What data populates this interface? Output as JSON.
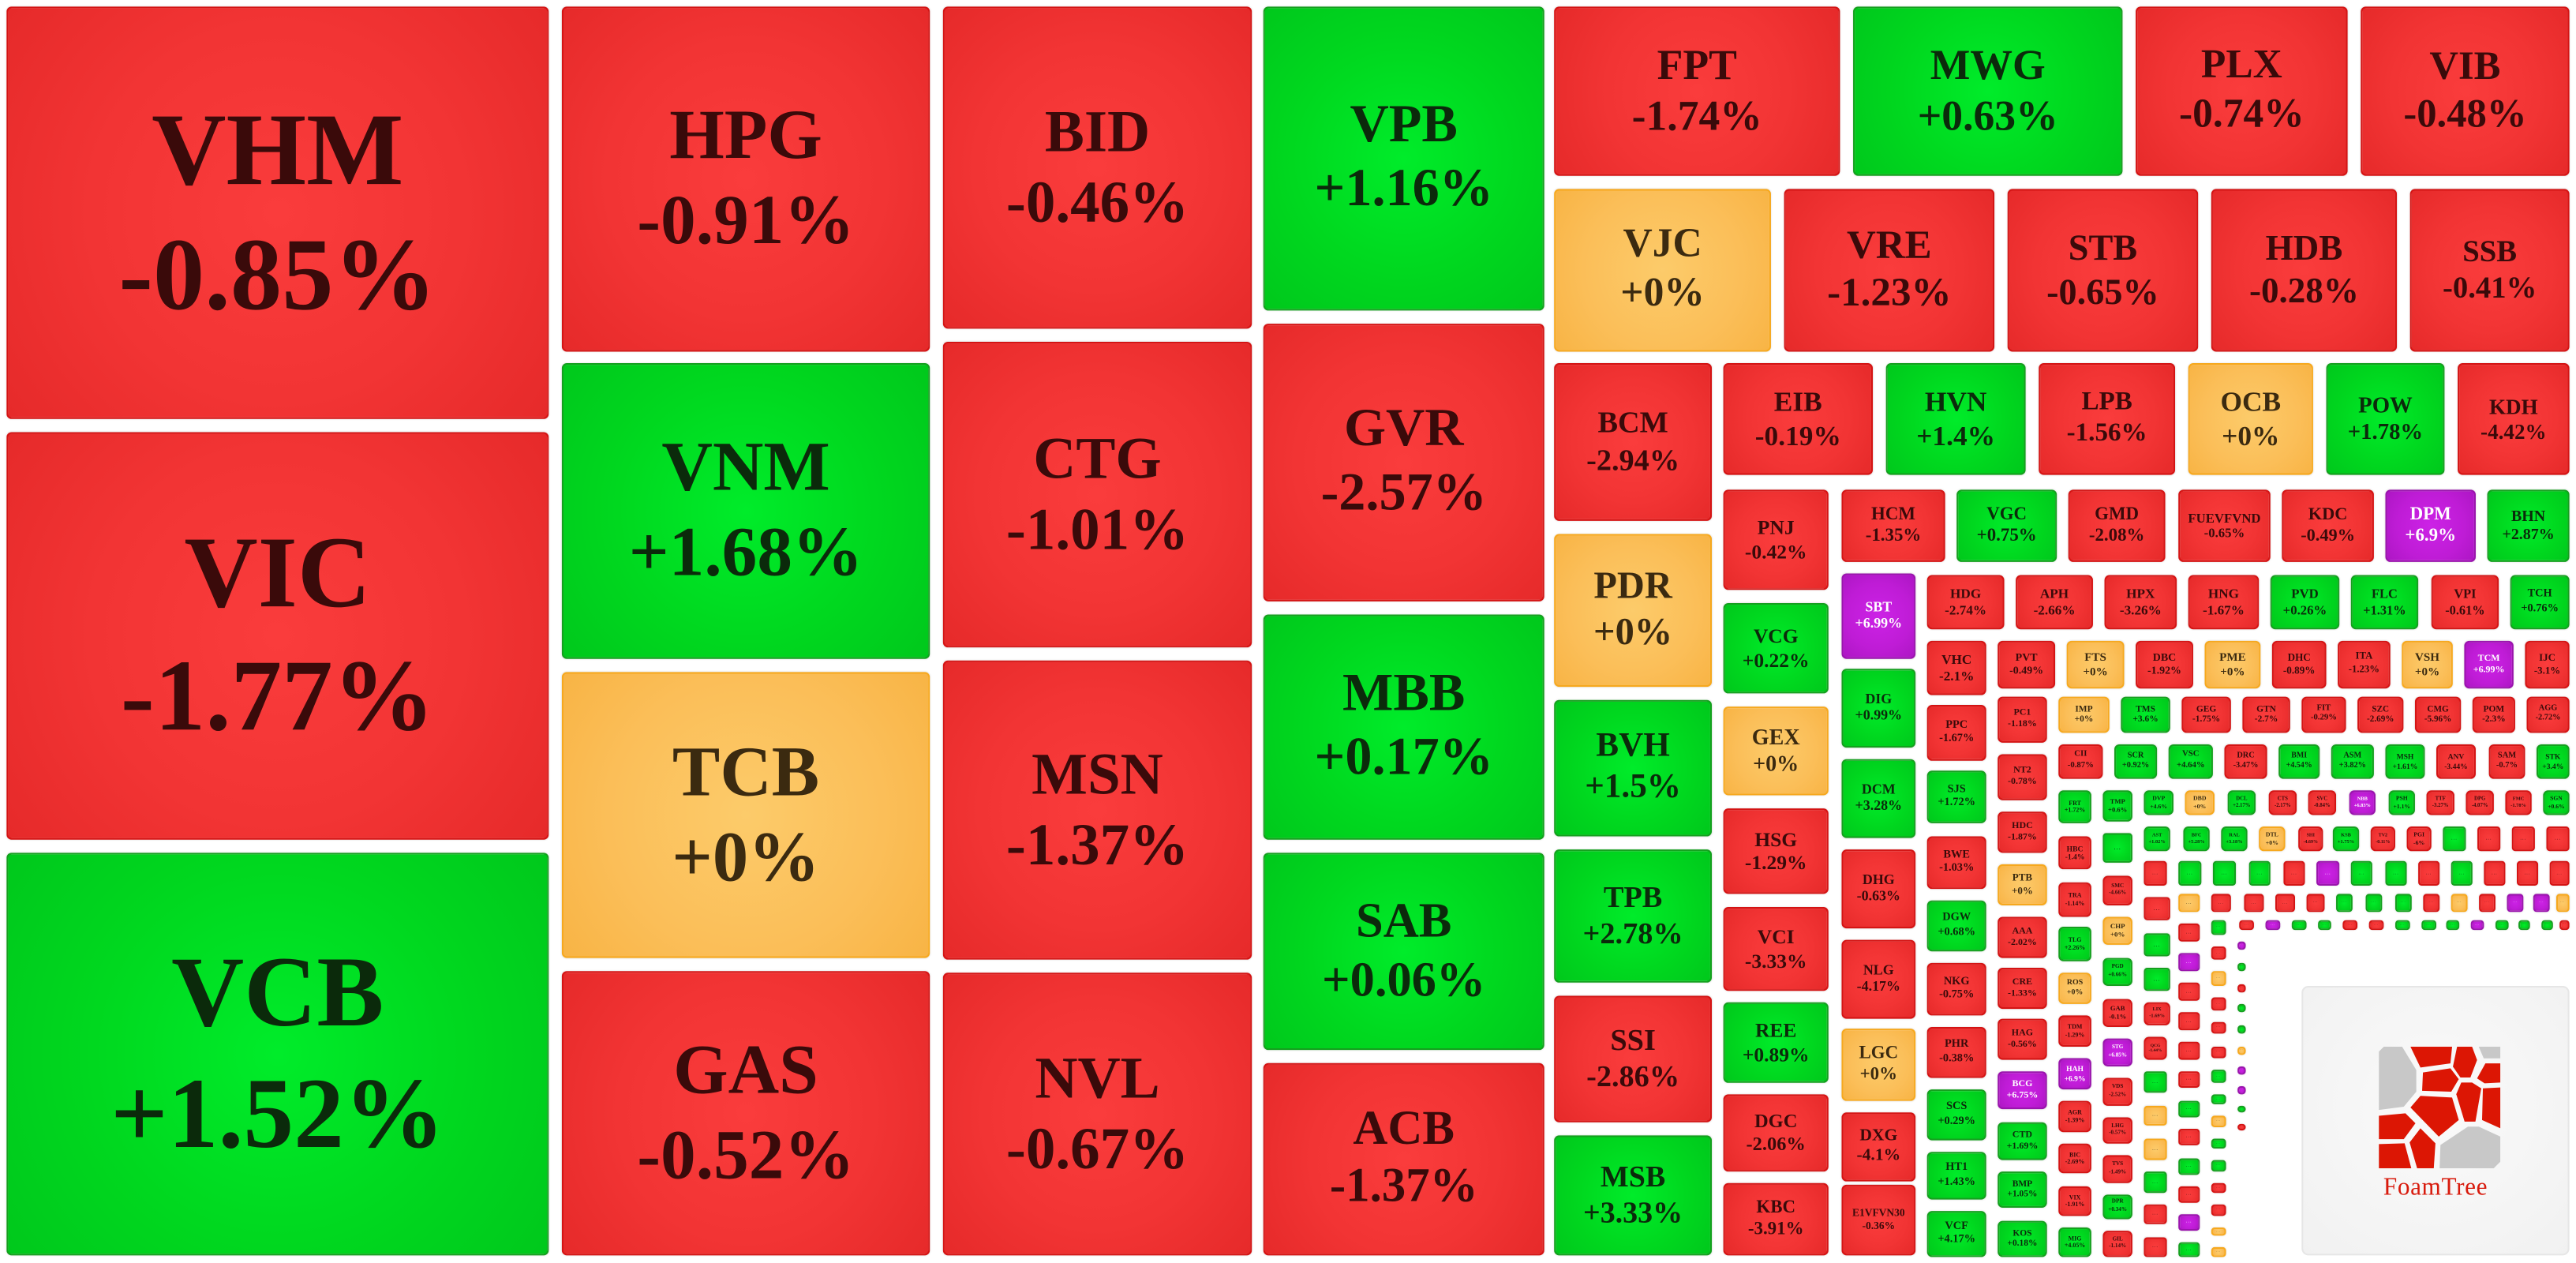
{
  "colors": {
    "down": "#f23434",
    "up": "#00d81f",
    "flat": "#fbbe58",
    "ceil": "#bf1cd6"
  },
  "tiles": [
    {
      "ticker": "VHM",
      "change": "-0.85%",
      "status": "down"
    },
    {
      "ticker": "VIC",
      "change": "-1.77%",
      "status": "down"
    },
    {
      "ticker": "VCB",
      "change": "+1.52%",
      "status": "up"
    },
    {
      "ticker": "HPG",
      "change": "-0.91%",
      "status": "down"
    },
    {
      "ticker": "VNM",
      "change": "+1.68%",
      "status": "up"
    },
    {
      "ticker": "TCB",
      "change": "+0%",
      "status": "flat"
    },
    {
      "ticker": "GAS",
      "change": "-0.52%",
      "status": "down"
    },
    {
      "ticker": "BID",
      "change": "-0.46%",
      "status": "down"
    },
    {
      "ticker": "CTG",
      "change": "-1.01%",
      "status": "down"
    },
    {
      "ticker": "MSN",
      "change": "-1.37%",
      "status": "down"
    },
    {
      "ticker": "NVL",
      "change": "-0.67%",
      "status": "down"
    },
    {
      "ticker": "VPB",
      "change": "+1.16%",
      "status": "up"
    },
    {
      "ticker": "GVR",
      "change": "-2.57%",
      "status": "down"
    },
    {
      "ticker": "MBB",
      "change": "+0.17%",
      "status": "up"
    },
    {
      "ticker": "SAB",
      "change": "+0.06%",
      "status": "up"
    },
    {
      "ticker": "ACB",
      "change": "-1.37%",
      "status": "down"
    },
    {
      "ticker": "FPT",
      "change": "-1.74%",
      "status": "down"
    },
    {
      "ticker": "MWG",
      "change": "+0.63%",
      "status": "up"
    },
    {
      "ticker": "PLX",
      "change": "-0.74%",
      "status": "down"
    },
    {
      "ticker": "VIB",
      "change": "-0.48%",
      "status": "down"
    },
    {
      "ticker": "VJC",
      "change": "+0%",
      "status": "flat"
    },
    {
      "ticker": "VRE",
      "change": "-1.23%",
      "status": "down"
    },
    {
      "ticker": "STB",
      "change": "-0.65%",
      "status": "down"
    },
    {
      "ticker": "HDB",
      "change": "-0.28%",
      "status": "down"
    },
    {
      "ticker": "SSB",
      "change": "-0.41%",
      "status": "down"
    },
    {
      "ticker": "BCM",
      "change": "-2.94%",
      "status": "down"
    },
    {
      "ticker": "PDR",
      "change": "+0%",
      "status": "flat"
    },
    {
      "ticker": "BVH",
      "change": "+1.5%",
      "status": "up"
    },
    {
      "ticker": "TPB",
      "change": "+2.78%",
      "status": "up"
    },
    {
      "ticker": "SSI",
      "change": "-2.86%",
      "status": "down"
    },
    {
      "ticker": "MSB",
      "change": "+3.33%",
      "status": "up"
    },
    {
      "ticker": "EIB",
      "change": "-0.19%",
      "status": "down"
    },
    {
      "ticker": "HVN",
      "change": "+1.4%",
      "status": "up"
    },
    {
      "ticker": "LPB",
      "change": "-1.56%",
      "status": "down"
    },
    {
      "ticker": "OCB",
      "change": "+0%",
      "status": "flat"
    },
    {
      "ticker": "POW",
      "change": "+1.78%",
      "status": "up"
    },
    {
      "ticker": "KDH",
      "change": "-4.42%",
      "status": "down"
    },
    {
      "ticker": "PNJ",
      "change": "-0.42%",
      "status": "down"
    },
    {
      "ticker": "VCG",
      "change": "+0.22%",
      "status": "up"
    },
    {
      "ticker": "GEX",
      "change": "+0%",
      "status": "flat"
    },
    {
      "ticker": "HSG",
      "change": "-1.29%",
      "status": "down"
    },
    {
      "ticker": "VCI",
      "change": "-3.33%",
      "status": "down"
    },
    {
      "ticker": "REE",
      "change": "+0.89%",
      "status": "up"
    },
    {
      "ticker": "DGC",
      "change": "-2.06%",
      "status": "down"
    },
    {
      "ticker": "KBC",
      "change": "-3.91%",
      "status": "down"
    },
    {
      "ticker": "HCM",
      "change": "-1.35%",
      "status": "down"
    },
    {
      "ticker": "VGC",
      "change": "+0.75%",
      "status": "up"
    },
    {
      "ticker": "GMD",
      "change": "-2.08%",
      "status": "down"
    },
    {
      "ticker": "FUEVFVND",
      "change": "-0.65%",
      "status": "down"
    },
    {
      "ticker": "KDC",
      "change": "-0.49%",
      "status": "down"
    },
    {
      "ticker": "DPM",
      "change": "+6.9%",
      "status": "ceil"
    },
    {
      "ticker": "BHN",
      "change": "+2.87%",
      "status": "up"
    },
    {
      "ticker": "SBT",
      "change": "+6.99%",
      "status": "ceil"
    },
    {
      "ticker": "DIG",
      "change": "+0.99%",
      "status": "up"
    },
    {
      "ticker": "DCM",
      "change": "+3.28%",
      "status": "up"
    },
    {
      "ticker": "DHG",
      "change": "-0.63%",
      "status": "down"
    },
    {
      "ticker": "NLG",
      "change": "-4.17%",
      "status": "down"
    },
    {
      "ticker": "LGC",
      "change": "+0%",
      "status": "flat"
    },
    {
      "ticker": "DXG",
      "change": "-4.1%",
      "status": "down"
    },
    {
      "ticker": "E1VFVN30",
      "change": "-0.36%",
      "status": "down"
    },
    {
      "ticker": "HDG",
      "change": "-2.74%",
      "status": "down"
    },
    {
      "ticker": "APH",
      "change": "-2.66%",
      "status": "down"
    },
    {
      "ticker": "HPX",
      "change": "-3.26%",
      "status": "down"
    },
    {
      "ticker": "HNG",
      "change": "-1.67%",
      "status": "down"
    },
    {
      "ticker": "PVD",
      "change": "+0.26%",
      "status": "up"
    },
    {
      "ticker": "FLC",
      "change": "+1.31%",
      "status": "up"
    },
    {
      "ticker": "VPI",
      "change": "-0.61%",
      "status": "down"
    },
    {
      "ticker": "TCH",
      "change": "+0.76%",
      "status": "up"
    },
    {
      "ticker": "VHC",
      "change": "-2.1%",
      "status": "down"
    },
    {
      "ticker": "PVT",
      "change": "-0.49%",
      "status": "down"
    },
    {
      "ticker": "FTS",
      "change": "+0%",
      "status": "flat"
    },
    {
      "ticker": "DBC",
      "change": "-1.92%",
      "status": "down"
    },
    {
      "ticker": "PME",
      "change": "+0%",
      "status": "flat"
    },
    {
      "ticker": "DHC",
      "change": "-0.89%",
      "status": "down"
    },
    {
      "ticker": "ITA",
      "change": "-1.23%",
      "status": "down"
    },
    {
      "ticker": "VSH",
      "change": "+0%",
      "status": "flat"
    },
    {
      "ticker": "TCM",
      "change": "+6.99%",
      "status": "ceil"
    },
    {
      "ticker": "IJC",
      "change": "-3.1%",
      "status": "down"
    },
    {
      "ticker": "PPC",
      "change": "-1.67%",
      "status": "down"
    },
    {
      "ticker": "SJS",
      "change": "+1.72%",
      "status": "up"
    },
    {
      "ticker": "BWE",
      "change": "-1.03%",
      "status": "down"
    },
    {
      "ticker": "DGW",
      "change": "+0.68%",
      "status": "up"
    },
    {
      "ticker": "NKG",
      "change": "-0.75%",
      "status": "down"
    },
    {
      "ticker": "PHR",
      "change": "-0.38%",
      "status": "down"
    },
    {
      "ticker": "SCS",
      "change": "+0.29%",
      "status": "up"
    },
    {
      "ticker": "HT1",
      "change": "+1.43%",
      "status": "up"
    },
    {
      "ticker": "VCF",
      "change": "+4.17%",
      "status": "up"
    },
    {
      "ticker": "PC1",
      "change": "-1.18%",
      "status": "down"
    },
    {
      "ticker": "NT2",
      "change": "-0.78%",
      "status": "down"
    },
    {
      "ticker": "HDC",
      "change": "-1.87%",
      "status": "down"
    },
    {
      "ticker": "PTB",
      "change": "+0%",
      "status": "flat"
    },
    {
      "ticker": "AAA",
      "change": "-2.02%",
      "status": "down"
    },
    {
      "ticker": "CRE",
      "change": "-1.33%",
      "status": "down"
    },
    {
      "ticker": "HAG",
      "change": "-0.56%",
      "status": "down"
    },
    {
      "ticker": "BCG",
      "change": "+6.75%",
      "status": "ceil"
    },
    {
      "ticker": "CTD",
      "change": "+1.69%",
      "status": "up"
    },
    {
      "ticker": "BMP",
      "change": "+1.05%",
      "status": "up"
    },
    {
      "ticker": "KOS",
      "change": "+0.18%",
      "status": "up"
    },
    {
      "ticker": "IMP",
      "change": "+0%",
      "status": "flat"
    },
    {
      "ticker": "TMS",
      "change": "+3.6%",
      "status": "up"
    },
    {
      "ticker": "GEG",
      "change": "-1.75%",
      "status": "down"
    },
    {
      "ticker": "GTN",
      "change": "-2.7%",
      "status": "down"
    },
    {
      "ticker": "FIT",
      "change": "-0.29%",
      "status": "down"
    },
    {
      "ticker": "SZC",
      "change": "-2.69%",
      "status": "down"
    },
    {
      "ticker": "CMG",
      "change": "-5.96%",
      "status": "down"
    },
    {
      "ticker": "POM",
      "change": "-2.3%",
      "status": "down"
    },
    {
      "ticker": "AGG",
      "change": "-2.72%",
      "status": "down"
    },
    {
      "ticker": "CII",
      "change": "-0.87%",
      "status": "down"
    },
    {
      "ticker": "SCR",
      "change": "+0.92%",
      "status": "up"
    },
    {
      "ticker": "VSC",
      "change": "+4.64%",
      "status": "up"
    },
    {
      "ticker": "DRC",
      "change": "-3.47%",
      "status": "down"
    },
    {
      "ticker": "BMI",
      "change": "+4.54%",
      "status": "up"
    },
    {
      "ticker": "ASM",
      "change": "+3.82%",
      "status": "up"
    },
    {
      "ticker": "MSH",
      "change": "+1.61%",
      "status": "up"
    },
    {
      "ticker": "ANV",
      "change": "-3.44%",
      "status": "down"
    },
    {
      "ticker": "SAM",
      "change": "-0.7%",
      "status": "down"
    },
    {
      "ticker": "STK",
      "change": "+3.4%",
      "status": "up"
    },
    {
      "ticker": "FRT",
      "change": "+1.72%",
      "status": "up"
    },
    {
      "ticker": "TMP",
      "change": "+0.6%",
      "status": "up"
    },
    {
      "ticker": "DVP",
      "change": "+4.6%",
      "status": "up"
    },
    {
      "ticker": "DBD",
      "change": "+0%",
      "status": "flat"
    },
    {
      "ticker": "DCL",
      "change": "+2.17%",
      "status": "up"
    },
    {
      "ticker": "CTS",
      "change": "-2.17%",
      "status": "down"
    },
    {
      "ticker": "SVC",
      "change": "-0.84%",
      "status": "down"
    },
    {
      "ticker": "NBB",
      "change": "+6.83%",
      "status": "ceil"
    },
    {
      "ticker": "PSH",
      "change": "+1.1%",
      "status": "up"
    },
    {
      "ticker": "TTF",
      "change": "-3.27%",
      "status": "down"
    },
    {
      "ticker": "DPG",
      "change": "-4.07%",
      "status": "down"
    },
    {
      "ticker": "FMC",
      "change": "-1.78%",
      "status": "down"
    },
    {
      "ticker": "SGN",
      "change": "+0.6%",
      "status": "up"
    },
    {
      "ticker": "HBC",
      "change": "-1.4%",
      "status": "down"
    },
    {
      "ticker": "TRA",
      "change": "-1.14%",
      "status": "down"
    },
    {
      "ticker": "TLG",
      "change": "+2.26%",
      "status": "up"
    },
    {
      "ticker": "ROS",
      "change": "+0%",
      "status": "flat"
    },
    {
      "ticker": "TDM",
      "change": "-1.29%",
      "status": "down"
    },
    {
      "ticker": "HAH",
      "change": "+6.9%",
      "status": "ceil"
    },
    {
      "ticker": "AGR",
      "change": "-1.39%",
      "status": "down"
    },
    {
      "ticker": "BIC",
      "change": "-2.69%",
      "status": "down"
    },
    {
      "ticker": "VIX",
      "change": "-1.91%",
      "status": "down"
    },
    {
      "ticker": "MIG",
      "change": "+4.05%",
      "status": "up"
    },
    {
      "ticker": "SMC",
      "change": "-4.66%",
      "status": "down"
    },
    {
      "ticker": "CHP",
      "change": "+0%",
      "status": "flat"
    },
    {
      "ticker": "PGD",
      "change": "+0.66%",
      "status": "up"
    },
    {
      "ticker": "GAB",
      "change": "-0.1%",
      "status": "down"
    },
    {
      "ticker": "STG",
      "change": "+6.85%",
      "status": "ceil"
    },
    {
      "ticker": "VDS",
      "change": "-2.52%",
      "status": "down"
    },
    {
      "ticker": "LHG",
      "change": "-0.57%",
      "status": "down"
    },
    {
      "ticker": "TVS",
      "change": "-1.49%",
      "status": "down"
    },
    {
      "ticker": "DPR",
      "change": "+0.34%",
      "status": "up"
    },
    {
      "ticker": "GIL",
      "change": "-1.14%",
      "status": "down"
    },
    {
      "ticker": "AST",
      "change": "+1.02%",
      "status": "up"
    },
    {
      "ticker": "BFC",
      "change": "+5.28%",
      "status": "up"
    },
    {
      "ticker": "RAL",
      "change": "+3.18%",
      "status": "up"
    },
    {
      "ticker": "DTL",
      "change": "+0%",
      "status": "flat"
    },
    {
      "ticker": "SHI",
      "change": "-4.69%",
      "status": "down"
    },
    {
      "ticker": "KSB",
      "change": "+1.75%",
      "status": "up"
    },
    {
      "ticker": "TV2",
      "change": "-0.11%",
      "status": "down"
    },
    {
      "ticker": "PGI",
      "change": "-6%",
      "status": "down"
    },
    {
      "ticker": "LIX",
      "change": "-1.69%",
      "status": "down"
    },
    {
      "ticker": "QCG",
      "change": "-1.44%",
      "status": "down"
    }
  ],
  "more_label": "...",
  "more_tiles": [
    "up",
    "down",
    "down",
    "down",
    "up",
    "down",
    "up",
    "up",
    "up",
    "down",
    "ceil",
    "up",
    "up",
    "down",
    "up",
    "down",
    "down",
    "down",
    "down",
    "up",
    "up",
    "up",
    "flat",
    "flat",
    "up",
    "down",
    "down",
    "flat",
    "down",
    "down",
    "down",
    "down",
    "up",
    "up",
    "up",
    "down",
    "flat",
    "down",
    "ceil",
    "ceil",
    "flat",
    "down",
    "ceil",
    "down",
    "down",
    "down",
    "down",
    "up",
    "down",
    "up",
    "down",
    "ceil",
    "up",
    "up",
    "down",
    "flat",
    "down",
    "down",
    "down",
    "up",
    "up",
    "flat",
    "up",
    "up",
    "down",
    "down",
    "flat",
    "flat",
    "down",
    "ceil",
    "up",
    "up",
    "down",
    "down",
    "up",
    "up",
    "up",
    "ceil",
    "up",
    "up",
    "up",
    "down",
    "ceil",
    "up",
    "down",
    "up",
    "up",
    "flat",
    "ceil",
    "ceil",
    "up",
    "down"
  ],
  "logo": {
    "text": "FoamTree"
  }
}
